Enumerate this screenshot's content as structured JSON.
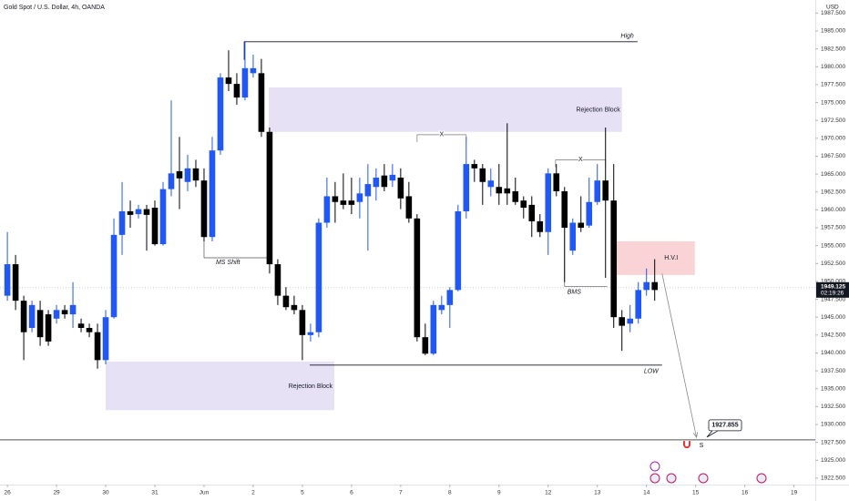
{
  "chart_data": {
    "type": "candlestick",
    "title": "Gold Spot / U.S. Dollar, 4h, OANDA",
    "currency": "USD",
    "up_color": "#2157f3",
    "down_color": "#000000",
    "grid": false,
    "x": [
      0,
      1,
      2,
      3,
      4,
      5,
      6,
      7,
      8,
      9,
      10,
      11,
      12,
      13,
      14,
      15,
      16,
      17,
      18,
      19,
      20,
      21,
      22,
      23,
      24,
      25,
      26,
      27,
      28,
      29,
      30,
      31,
      32,
      33,
      34,
      35,
      36,
      37,
      38,
      39,
      40,
      41,
      42,
      43,
      44,
      45,
      46,
      47,
      48,
      49,
      50,
      51,
      52,
      53,
      54,
      55,
      56,
      57,
      58,
      59,
      60,
      61,
      62,
      63,
      64,
      65,
      66,
      67,
      68,
      69,
      70,
      71,
      72,
      73,
      74,
      75,
      76,
      77,
      78,
      79
    ],
    "open": [
      1948.0,
      1952.4,
      1947.3,
      1943.5,
      1946.0,
      1945.4,
      1944.8,
      1946.0,
      1945.4,
      1944.1,
      1943.5,
      1942.9,
      1939.0,
      1945.0,
      1956.5,
      1959.8,
      1959.4,
      1960.1,
      1960.3,
      1955.2,
      1962.9,
      1965.4,
      1963.9,
      1965.8,
      1964.1,
      1956.2,
      1968.3,
      1978.5,
      1977.6,
      1975.7,
      1979.1,
      1979.1,
      1970.9,
      1952.4,
      1948.0,
      1946.7,
      1946.0,
      1942.5,
      1942.9,
      1958.2,
      1961.9,
      1961.3,
      1961.3,
      1961.1,
      1961.9,
      1963.2,
      1964.8,
      1964.1,
      1964.5,
      1961.9,
      1958.8,
      1942.2,
      1939.9,
      1946.0,
      1946.7,
      1948.8,
      1959.8,
      1966.4,
      1965.8,
      1963.2,
      1963.2,
      1963.0,
      1962.6,
      1961.3,
      1960.7,
      1958.4,
      1956.9,
      1965.1,
      1962.6,
      1954.3,
      1958.2,
      1957.8,
      1961.1,
      1964.1,
      1961.3,
      1945.0,
      1944.1,
      1944.8,
      1948.8,
      1949.9
    ],
    "high": [
      1956.9,
      1953.7,
      1948.0,
      1947.3,
      1947.3,
      1946.0,
      1946.7,
      1946.7,
      1949.9,
      1944.8,
      1944.1,
      1944.1,
      1946.0,
      1958.8,
      1963.9,
      1961.3,
      1960.7,
      1960.7,
      1961.3,
      1963.9,
      1975.3,
      1970.2,
      1967.7,
      1967.0,
      1965.8,
      1970.2,
      1979.1,
      1982.3,
      1979.1,
      1983.6,
      1981.7,
      1981.1,
      1971.5,
      1953.1,
      1949.2,
      1948.0,
      1946.7,
      1944.1,
      1958.8,
      1964.5,
      1963.9,
      1965.1,
      1964.5,
      1964.5,
      1966.4,
      1965.8,
      1966.4,
      1966.4,
      1965.8,
      1963.9,
      1959.4,
      1944.1,
      1947.3,
      1948.0,
      1949.2,
      1960.7,
      1970.2,
      1967.0,
      1966.4,
      1965.8,
      1966.4,
      1972.1,
      1964.5,
      1961.9,
      1961.9,
      1959.4,
      1965.8,
      1966.4,
      1963.2,
      1958.8,
      1961.9,
      1964.5,
      1966.4,
      1971.5,
      1966.4,
      1946.0,
      1946.7,
      1949.9,
      1951.8,
      1953.1
    ],
    "low": [
      1947.3,
      1946.0,
      1939.0,
      1942.9,
      1941.0,
      1941.0,
      1944.1,
      1944.8,
      1943.5,
      1942.9,
      1942.2,
      1937.8,
      1938.4,
      1944.8,
      1953.7,
      1957.5,
      1958.8,
      1954.3,
      1955.0,
      1955.0,
      1961.9,
      1960.1,
      1962.6,
      1963.2,
      1955.6,
      1955.6,
      1967.7,
      1976.6,
      1974.7,
      1975.3,
      1978.5,
      1970.2,
      1951.1,
      1946.7,
      1946.0,
      1945.4,
      1939.0,
      1941.6,
      1942.2,
      1957.5,
      1958.2,
      1960.1,
      1959.4,
      1958.8,
      1954.3,
      1961.3,
      1962.6,
      1963.2,
      1960.1,
      1958.2,
      1941.6,
      1939.7,
      1939.7,
      1945.4,
      1943.5,
      1948.6,
      1958.8,
      1963.9,
      1960.7,
      1961.9,
      1960.7,
      1960.7,
      1960.7,
      1958.8,
      1956.2,
      1956.2,
      1953.7,
      1961.9,
      1949.9,
      1953.7,
      1956.9,
      1957.5,
      1960.7,
      1950.5,
      1943.5,
      1940.3,
      1942.9,
      1944.1,
      1948.0,
      1947.3
    ],
    "close": [
      1952.4,
      1947.3,
      1942.9,
      1946.7,
      1942.2,
      1941.6,
      1946.0,
      1945.4,
      1946.7,
      1943.5,
      1942.9,
      1939.0,
      1945.0,
      1956.5,
      1959.8,
      1959.3,
      1960.1,
      1959.3,
      1955.2,
      1962.9,
      1965.1,
      1964.4,
      1965.8,
      1964.1,
      1956.2,
      1968.3,
      1978.5,
      1977.6,
      1975.7,
      1979.8,
      1979.8,
      1970.9,
      1952.4,
      1948.0,
      1946.4,
      1946.0,
      1942.5,
      1942.9,
      1958.2,
      1961.9,
      1961.1,
      1960.7,
      1960.7,
      1962.3,
      1963.6,
      1964.5,
      1963.2,
      1964.9,
      1961.6,
      1958.8,
      1942.2,
      1939.9,
      1946.7,
      1946.7,
      1948.8,
      1959.8,
      1966.4,
      1965.8,
      1963.9,
      1964.1,
      1962.3,
      1962.3,
      1961.1,
      1960.3,
      1958.4,
      1956.9,
      1965.1,
      1962.6,
      1957.5,
      1958.2,
      1957.5,
      1961.1,
      1964.1,
      1961.3,
      1945.0,
      1943.8,
      1944.8,
      1948.8,
      1949.9,
      1948.8
    ],
    "xlim": [
      -0.9,
      98.6
    ],
    "xticks": [
      {
        "value": 0,
        "label": "26"
      },
      {
        "value": 6,
        "label": "29"
      },
      {
        "value": 12,
        "label": "30"
      },
      {
        "value": 18,
        "label": "31"
      },
      {
        "value": 24,
        "label": "Jun"
      },
      {
        "value": 30,
        "label": "2"
      },
      {
        "value": 36,
        "label": "5"
      },
      {
        "value": 42,
        "label": "6"
      },
      {
        "value": 48,
        "label": "7"
      },
      {
        "value": 54,
        "label": "8"
      },
      {
        "value": 60,
        "label": "9"
      },
      {
        "value": 66,
        "label": "12"
      },
      {
        "value": 72,
        "label": "13"
      },
      {
        "value": 78,
        "label": "14"
      },
      {
        "value": 84,
        "label": "15"
      },
      {
        "value": 90,
        "label": "16"
      },
      {
        "value": 96,
        "label": "19"
      }
    ],
    "ylim": [
      1921.6,
      1989.33
    ],
    "yticks": [
      {
        "value": 1922.5,
        "label": "1922.500"
      },
      {
        "value": 1925,
        "label": "1925.000"
      },
      {
        "value": 1927.5,
        "label": "1927.500"
      },
      {
        "value": 1930,
        "label": "1930.000"
      },
      {
        "value": 1932.5,
        "label": "1932.500"
      },
      {
        "value": 1935,
        "label": "1935.000"
      },
      {
        "value": 1937.5,
        "label": "1937.500"
      },
      {
        "value": 1940,
        "label": "1940.000"
      },
      {
        "value": 1942.5,
        "label": "1942.500"
      },
      {
        "value": 1945,
        "label": "1945.000"
      },
      {
        "value": 1947.5,
        "label": "1947.500"
      },
      {
        "value": 1950,
        "label": "1950.000"
      },
      {
        "value": 1952.5,
        "label": "1952.500"
      },
      {
        "value": 1955,
        "label": "1955.000"
      },
      {
        "value": 1957.5,
        "label": "1957.500"
      },
      {
        "value": 1960,
        "label": "1960.000"
      },
      {
        "value": 1962.5,
        "label": "1962.500"
      },
      {
        "value": 1965,
        "label": "1965.000"
      },
      {
        "value": 1967.5,
        "label": "1967.500"
      },
      {
        "value": 1970,
        "label": "1970.000"
      },
      {
        "value": 1972.5,
        "label": "1972.500"
      },
      {
        "value": 1975,
        "label": "1975.000"
      },
      {
        "value": 1977.5,
        "label": "1977.500"
      },
      {
        "value": 1980,
        "label": "1980.000"
      },
      {
        "value": 1982.5,
        "label": "1982.500"
      },
      {
        "value": 1985,
        "label": "1985.000"
      },
      {
        "value": 1987.5,
        "label": "1987.500"
      }
    ],
    "current_price": 1949.125,
    "countdown": "02:19:26",
    "annotations": {
      "high": {
        "label": "High",
        "price": 1983.5,
        "x": [
          28.9,
          76.9
        ]
      },
      "low": {
        "label": "LOW",
        "price": 1938.3,
        "x": [
          36.9,
          79.9
        ]
      },
      "rejection_blocks": [
        {
          "label": "Rejection Block",
          "top": 1977.1,
          "bottom": 1970.9,
          "x": [
            31.9,
            75
          ]
        },
        {
          "label": "Rejection Block",
          "top": 1938.8,
          "bottom": 1932.0,
          "x": [
            12,
            39.9
          ]
        }
      ],
      "ms_shift": {
        "label": "MS Shift",
        "price": 1953.3,
        "from": 1956.0,
        "x": [
          24,
          32
        ]
      },
      "x_marks": [
        {
          "label": "X",
          "price": 1970.5,
          "x": [
            50,
            56
          ]
        },
        {
          "label": "X",
          "price": 1967.0,
          "x": [
            66.9,
            73
          ]
        }
      ],
      "bms": {
        "label": "BMS",
        "price": 1949.3,
        "from": 1957.5,
        "x": [
          68,
          73.2
        ]
      },
      "hvi": {
        "label": "H.V.I",
        "top": 1955.6,
        "bottom": 1950.9,
        "x": [
          74.1,
          83.9
        ]
      },
      "target": 1927.855,
      "arrow": {
        "from": [
          79.9,
          1951.1
        ],
        "to": [
          84.1,
          1928.2
        ]
      },
      "signal": "S"
    }
  }
}
